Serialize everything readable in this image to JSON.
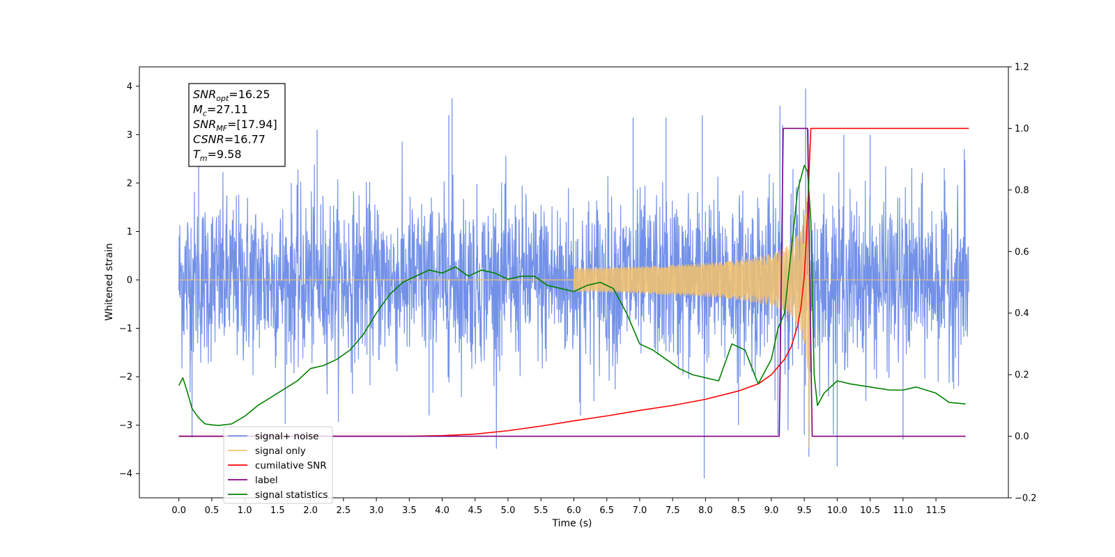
{
  "chart_data": {
    "type": "line",
    "xlabel": "Time (s)",
    "ylabel": "Whitened strain",
    "xlim": [
      -0.6,
      12.6
    ],
    "ylim": [
      -4.5,
      4.4
    ],
    "ylim_right": [
      -0.2,
      1.2
    ],
    "x_ticks": [
      0.0,
      0.5,
      1.0,
      1.5,
      2.0,
      2.5,
      3.0,
      3.5,
      4.0,
      4.5,
      5.0,
      5.5,
      6.0,
      6.5,
      7.0,
      7.5,
      8.0,
      8.5,
      9.0,
      9.5,
      10.0,
      10.5,
      11.0,
      11.5
    ],
    "x_tick_labels": [
      "0.0",
      "0.5",
      "1.0",
      "1.5",
      "2.0",
      "2.5",
      "3.0",
      "3.5",
      "4.0",
      "4.5",
      "5.0",
      "5.5",
      "6.0",
      "6.5",
      "7.0",
      "7.5",
      "8.0",
      "8.5",
      "9.0",
      "9.5",
      "10.0",
      "10.5",
      "11.0",
      "11.5"
    ],
    "y_ticks": [
      4,
      3,
      2,
      1,
      0,
      -1,
      -2,
      -3,
      -4
    ],
    "y_tick_labels": [
      "4",
      "3",
      "2",
      "1",
      "0",
      "−1",
      "−2",
      "−3",
      "−4"
    ],
    "y_right_ticks": [
      1.2,
      1.0,
      0.8,
      0.6,
      0.4,
      0.2,
      0.0,
      -0.2
    ],
    "y_right_tick_labels": [
      "1.2",
      "1.0",
      "0.8",
      "0.6",
      "0.4",
      "0.2",
      "0.0",
      "−0.2"
    ],
    "annotation": {
      "lines": [
        {
          "base": "SNR",
          "sub": "opt",
          "value": "=16.25"
        },
        {
          "base": "M",
          "sub": "c",
          "value": "=27.11"
        },
        {
          "base": "SNR",
          "sub": "MF",
          "value": "=[17.94]"
        },
        {
          "base": "CSNR",
          "sub": "",
          "value": "=16.77"
        },
        {
          "base": "T",
          "sub": "m",
          "value": "=9.58"
        }
      ]
    },
    "legend": {
      "location": "lower-left",
      "entries": [
        {
          "label": "signal+ noise",
          "color": "#7391e8"
        },
        {
          "label": "signal only",
          "color": "#f5c26b"
        },
        {
          "label": "cumilative SNR",
          "color": "#ff0000"
        },
        {
          "label": "label",
          "color": "#800080"
        },
        {
          "label": "signal statistics",
          "color": "#008000"
        }
      ]
    },
    "series": [
      {
        "name": "signal+ noise",
        "axis": "left",
        "color": "#7391e8",
        "x_range": [
          0.0,
          12.0
        ],
        "noise_std": 0.85,
        "spike_points": [
          [
            0.2,
            -3.25
          ],
          [
            0.3,
            2.5
          ],
          [
            2.1,
            3.1
          ],
          [
            3.8,
            -2.8
          ],
          [
            4.1,
            3.4
          ],
          [
            4.15,
            3.75
          ],
          [
            6.1,
            -2.8
          ],
          [
            6.9,
            3.35
          ],
          [
            7.4,
            3.35
          ],
          [
            7.95,
            3.4
          ],
          [
            7.98,
            -4.1
          ],
          [
            8.5,
            -3.0
          ],
          [
            9.1,
            -3.2
          ],
          [
            9.13,
            3.6
          ],
          [
            9.17,
            3.2
          ],
          [
            9.5,
            -3.2
          ],
          [
            9.52,
            3.95
          ],
          [
            9.56,
            3.1
          ],
          [
            9.57,
            -3.65
          ],
          [
            10.0,
            -3.85
          ],
          [
            10.1,
            3.0
          ],
          [
            10.5,
            3.0
          ],
          [
            11.0,
            -3.3
          ],
          [
            11.93,
            2.7
          ]
        ]
      },
      {
        "name": "signal only",
        "axis": "left",
        "color": "#f5c26b",
        "x_range": [
          0.0,
          12.0
        ],
        "chirp_peak_time": 9.58,
        "chirp_peak_amplitude": 3.5
      },
      {
        "name": "cumilative SNR",
        "axis": "right",
        "color": "#ff0000",
        "x": [
          0.0,
          3.5,
          4.0,
          4.5,
          5.0,
          5.5,
          6.0,
          6.5,
          7.0,
          7.5,
          8.0,
          8.5,
          8.8,
          9.0,
          9.2,
          9.3,
          9.4,
          9.45,
          9.5,
          9.55,
          9.58,
          9.6,
          12.0
        ],
        "values": [
          0.0,
          0.0,
          0.002,
          0.007,
          0.018,
          0.033,
          0.05,
          0.066,
          0.084,
          0.1,
          0.12,
          0.147,
          0.17,
          0.2,
          0.25,
          0.29,
          0.36,
          0.42,
          0.52,
          0.72,
          0.9,
          1.0,
          1.0
        ]
      },
      {
        "name": "label",
        "axis": "right",
        "color": "#800080",
        "x": [
          0.0,
          9.12,
          9.18,
          9.55,
          9.62,
          11.95
        ],
        "values": [
          0.0,
          0.0,
          1.0,
          1.0,
          0.0,
          0.0
        ]
      },
      {
        "name": "signal statistics",
        "axis": "right",
        "color": "#008000",
        "x": [
          0.0,
          0.06,
          0.12,
          0.2,
          0.3,
          0.4,
          0.5,
          0.6,
          0.8,
          1.0,
          1.2,
          1.5,
          1.8,
          2.0,
          2.2,
          2.4,
          2.6,
          2.8,
          3.0,
          3.2,
          3.4,
          3.6,
          3.8,
          4.0,
          4.2,
          4.4,
          4.6,
          4.8,
          5.0,
          5.2,
          5.4,
          5.6,
          5.8,
          6.0,
          6.2,
          6.4,
          6.6,
          6.8,
          7.0,
          7.2,
          7.4,
          7.6,
          7.8,
          8.0,
          8.2,
          8.4,
          8.6,
          8.8,
          9.0,
          9.1,
          9.2,
          9.3,
          9.4,
          9.5,
          9.55,
          9.6,
          9.65,
          9.7,
          9.8,
          10.0,
          10.2,
          10.5,
          10.8,
          11.0,
          11.2,
          11.5,
          11.7,
          11.95
        ],
        "values": [
          0.165,
          0.19,
          0.15,
          0.09,
          0.06,
          0.04,
          0.037,
          0.035,
          0.04,
          0.065,
          0.1,
          0.14,
          0.18,
          0.22,
          0.23,
          0.25,
          0.28,
          0.33,
          0.4,
          0.46,
          0.5,
          0.52,
          0.54,
          0.53,
          0.55,
          0.52,
          0.54,
          0.53,
          0.51,
          0.52,
          0.52,
          0.49,
          0.48,
          0.47,
          0.49,
          0.5,
          0.48,
          0.4,
          0.3,
          0.28,
          0.25,
          0.22,
          0.2,
          0.19,
          0.18,
          0.3,
          0.28,
          0.17,
          0.25,
          0.35,
          0.4,
          0.6,
          0.8,
          0.88,
          0.86,
          0.7,
          0.2,
          0.1,
          0.14,
          0.18,
          0.17,
          0.16,
          0.15,
          0.15,
          0.16,
          0.14,
          0.11,
          0.105
        ]
      }
    ]
  }
}
